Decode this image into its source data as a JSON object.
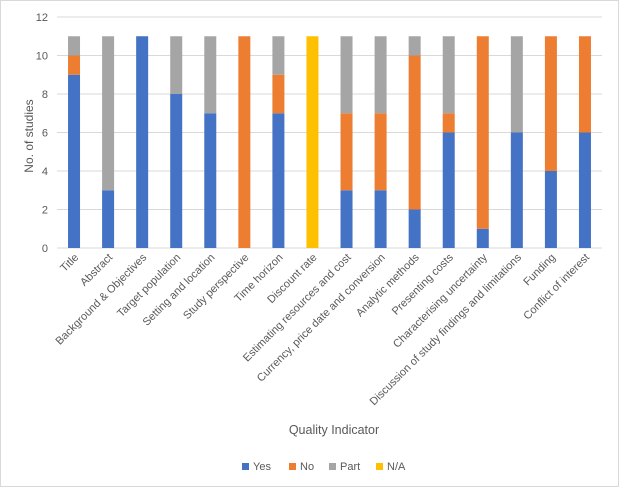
{
  "chart_data": {
    "type": "bar",
    "stacked": true,
    "xlabel": "Quality Indicator",
    "ylabel": "No. of studies",
    "ylim": [
      0,
      12
    ],
    "yticks": [
      0,
      2,
      4,
      6,
      8,
      10,
      12
    ],
    "grid": true,
    "legend_position": "bottom",
    "categories": [
      "Title",
      "Abstract",
      "Background & Objectives",
      "Target population",
      "Setting and location",
      "Study perspective",
      "Time horizon",
      "Discount rate",
      "Estimating resources and cost",
      "Currency, price date and conversion",
      "Analytic methods",
      "Presenting costs",
      "Characterising  uncertainty",
      "Discussion of study findings and limitations",
      "Funding",
      "Conflict of interest"
    ],
    "series": [
      {
        "name": "Yes",
        "color": "#4472c4",
        "values": [
          9,
          3,
          11,
          8,
          7,
          0,
          7,
          0,
          3,
          3,
          2,
          6,
          1,
          6,
          4,
          6
        ]
      },
      {
        "name": "No",
        "color": "#ed7d31",
        "values": [
          1,
          0,
          0,
          0,
          0,
          11,
          2,
          0,
          4,
          4,
          8,
          1,
          10,
          0,
          7,
          5
        ]
      },
      {
        "name": "Part",
        "color": "#a5a5a5",
        "values": [
          1,
          8,
          0,
          3,
          4,
          0,
          2,
          0,
          4,
          4,
          1,
          4,
          0,
          5,
          0,
          0
        ]
      },
      {
        "name": "N/A",
        "color": "#ffc000",
        "values": [
          0,
          0,
          0,
          0,
          0,
          0,
          0,
          11,
          0,
          0,
          0,
          0,
          0,
          0,
          0,
          0
        ]
      }
    ]
  }
}
